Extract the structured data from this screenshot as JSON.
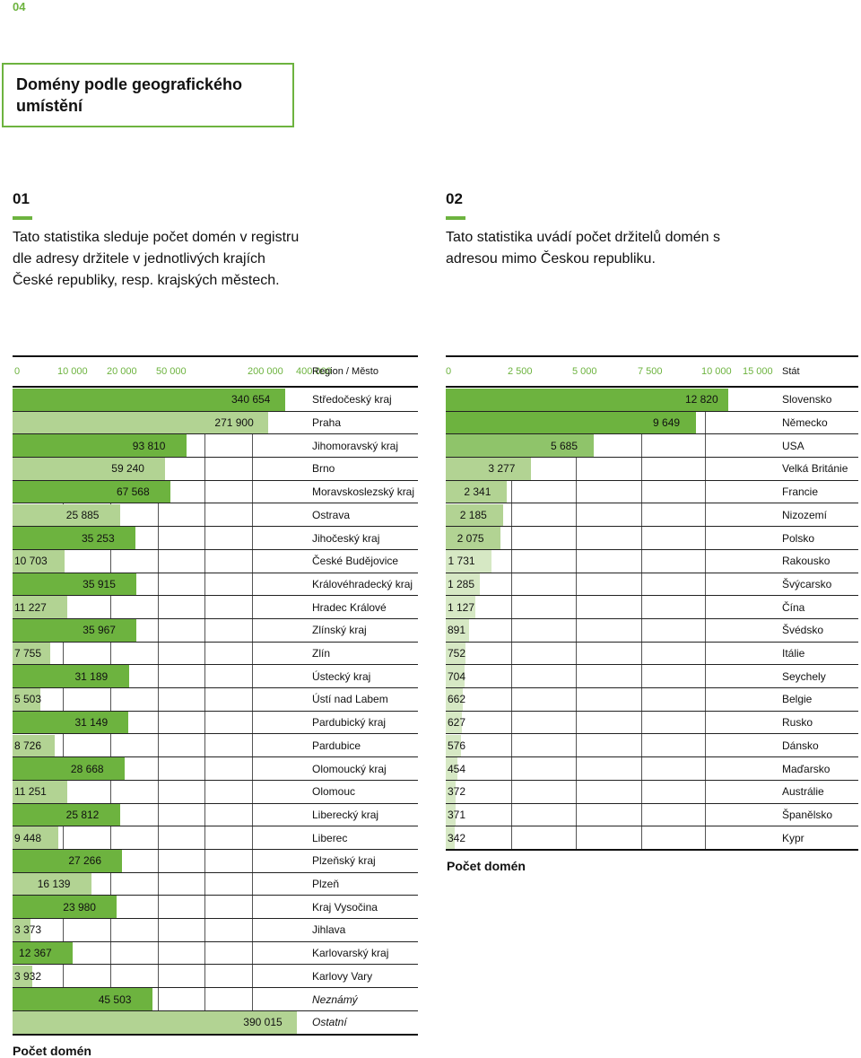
{
  "page_number": "04",
  "title": "Domény podle geografického umístění",
  "sections": [
    {
      "number": "01",
      "text": "Tato statistika sleduje počet domén v registru dle adresy držitele v jednotlivých krajích České republiky, resp. krajských městech."
    },
    {
      "number": "02",
      "text": "Tato statistika uvádí počet držitelů domén s adresou mimo Českou republiku."
    }
  ],
  "colors": {
    "accent": "#6db33f",
    "bar_dark": "#6db33f",
    "bar_light": "#b2d393"
  },
  "chart_data": [
    {
      "type": "bar",
      "orientation": "horizontal",
      "scale": "piecewise-linear",
      "axis_ticks": [
        "0",
        "10 000",
        "20 000",
        "50 000",
        "200 000",
        "400 000"
      ],
      "axis_tick_values": [
        0,
        10000,
        20000,
        50000,
        200000,
        400000
      ],
      "label_header": "Region / Město",
      "xlabel": "Počet domén",
      "categories": [
        "Středočeský kraj",
        "Praha",
        "Jihomoravský kraj",
        "Brno",
        "Moravskoslezský kraj",
        "Ostrava",
        "Jihočeský kraj",
        "České Budějovice",
        "Královéhradecký kraj",
        "Hradec Králové",
        "Zlínský kraj",
        "Zlín",
        "Ústecký kraj",
        "Ústí nad Labem",
        "Pardubický kraj",
        "Pardubice",
        "Olomoucký kraj",
        "Olomouc",
        "Liberecký kraj",
        "Liberec",
        "Plzeňský kraj",
        "Plzeň",
        "Kraj Vysočina",
        "Jihlava",
        "Karlovarský kraj",
        "Karlovy Vary",
        "Neznámý",
        "Ostatní"
      ],
      "value_labels": [
        "340 654",
        "271 900",
        "93 810",
        "59 240",
        "67 568",
        "25 885",
        "35 253",
        "10 703",
        "35 915",
        "11 227",
        "35 967",
        "7 755",
        "31 189",
        "5 503",
        "31 149",
        "8 726",
        "28 668",
        "11 251",
        "25 812",
        "9 448",
        "27 266",
        "16 139",
        "23 980",
        "3 373",
        "12 367",
        "3 932",
        "45 503",
        "390 015"
      ],
      "values": [
        340654,
        271900,
        93810,
        59240,
        67568,
        25885,
        35253,
        10703,
        35915,
        11227,
        35967,
        7755,
        31189,
        5503,
        31149,
        8726,
        28668,
        11251,
        25812,
        9448,
        27266,
        16139,
        23980,
        3373,
        12367,
        3932,
        45503,
        390015
      ],
      "italic_labels": [
        "Neznámý",
        "Ostatní"
      ]
    },
    {
      "type": "bar",
      "orientation": "horizontal",
      "axis_ticks": [
        "0",
        "2 500",
        "5 000",
        "7 500",
        "10 000",
        "15 000"
      ],
      "axis_tick_values": [
        0,
        2500,
        5000,
        7500,
        10000,
        15000
      ],
      "label_header": "Stát",
      "xlabel": "Počet domén",
      "categories": [
        "Slovensko",
        "Německo",
        "USA",
        "Velká Británie",
        "Francie",
        "Nizozemí",
        "Polsko",
        "Rakousko",
        "Švýcarsko",
        "Čína",
        "Švédsko",
        "Itálie",
        "Seychely",
        "Belgie",
        "Rusko",
        "Dánsko",
        "Maďarsko",
        "Austrálie",
        "Španělsko",
        "Kypr"
      ],
      "value_labels": [
        "12 820",
        "9 649",
        "5 685",
        "3 277",
        "2 341",
        "2 185",
        "2 075",
        "1 731",
        "1 285",
        "1 127",
        "891",
        "752",
        "704",
        "662",
        "627",
        "576",
        "454",
        "372",
        "371",
        "342"
      ],
      "values": [
        12820,
        9649,
        5685,
        3277,
        2341,
        2185,
        2075,
        1731,
        1285,
        1127,
        891,
        752,
        704,
        662,
        627,
        576,
        454,
        372,
        371,
        342
      ]
    }
  ]
}
